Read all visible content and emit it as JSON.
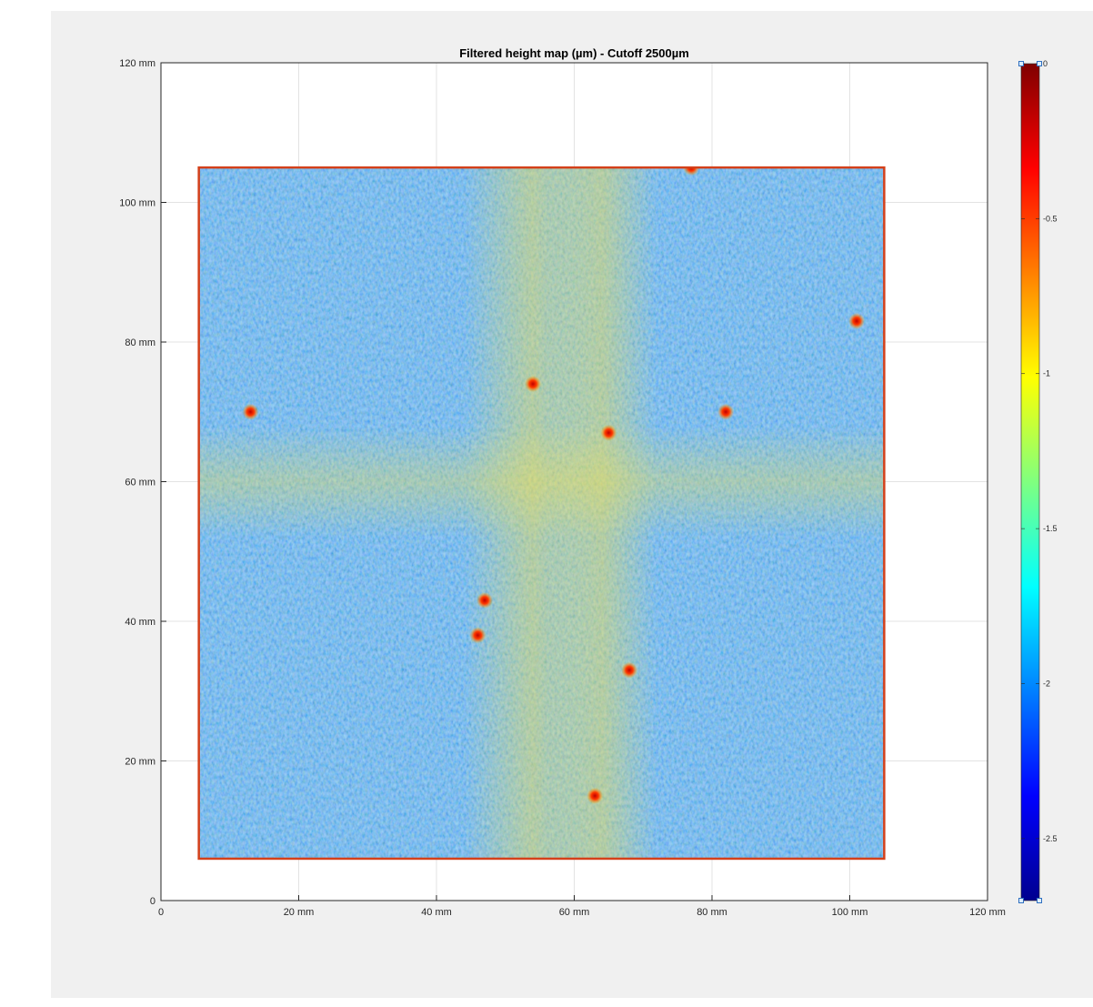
{
  "figure": {
    "background": "#f0f0f0",
    "axes_background": "#ffffff"
  },
  "chart_data": {
    "type": "heatmap",
    "title": "Filtered height map (µm) - Cutoff 2500µm",
    "xlim": [
      0,
      120
    ],
    "ylim": [
      0,
      120
    ],
    "x_ticks": [
      {
        "value": 0,
        "label": "0"
      },
      {
        "value": 20,
        "label": "20 mm"
      },
      {
        "value": 40,
        "label": "40 mm"
      },
      {
        "value": 60,
        "label": "60 mm"
      },
      {
        "value": 80,
        "label": "80 mm"
      },
      {
        "value": 100,
        "label": "100 mm"
      },
      {
        "value": 120,
        "label": "120 mm"
      }
    ],
    "y_ticks": [
      {
        "value": 0,
        "label": "0"
      },
      {
        "value": 20,
        "label": "20 mm"
      },
      {
        "value": 40,
        "label": "40 mm"
      },
      {
        "value": 60,
        "label": "60 mm"
      },
      {
        "value": 80,
        "label": "80 mm"
      },
      {
        "value": 100,
        "label": "100 mm"
      },
      {
        "value": 120,
        "label": "120 mm"
      }
    ],
    "grid": true,
    "sample_region_mm": {
      "x": [
        5.5,
        105
      ],
      "y": [
        6,
        105
      ]
    },
    "colormap": "jet",
    "clim": [
      -2.7,
      0
    ],
    "colorbar": {
      "location": "right",
      "ticks": [
        {
          "value": 0,
          "label": "0"
        },
        {
          "value": -0.5,
          "label": "-0.5"
        },
        {
          "value": -1,
          "label": "-1"
        },
        {
          "value": -1.5,
          "label": "-1.5"
        },
        {
          "value": -2,
          "label": "-2"
        },
        {
          "value": -2.5,
          "label": "-2.5"
        }
      ]
    },
    "hotspots_mm": [
      {
        "x": 65,
        "y": 67,
        "value": -0.5
      },
      {
        "x": 47,
        "y": 43,
        "value": -0.5
      },
      {
        "x": 46,
        "y": 38,
        "value": -0.4
      },
      {
        "x": 68,
        "y": 33,
        "value": -0.5
      },
      {
        "x": 82,
        "y": 70,
        "value": -0.6
      },
      {
        "x": 101,
        "y": 83,
        "value": -0.8
      },
      {
        "x": 63,
        "y": 15,
        "value": -0.8
      },
      {
        "x": 13,
        "y": 70,
        "value": -1.0
      },
      {
        "x": 54,
        "y": 74,
        "value": -0.9
      },
      {
        "x": 77,
        "y": 105,
        "value": -0.6
      }
    ]
  }
}
